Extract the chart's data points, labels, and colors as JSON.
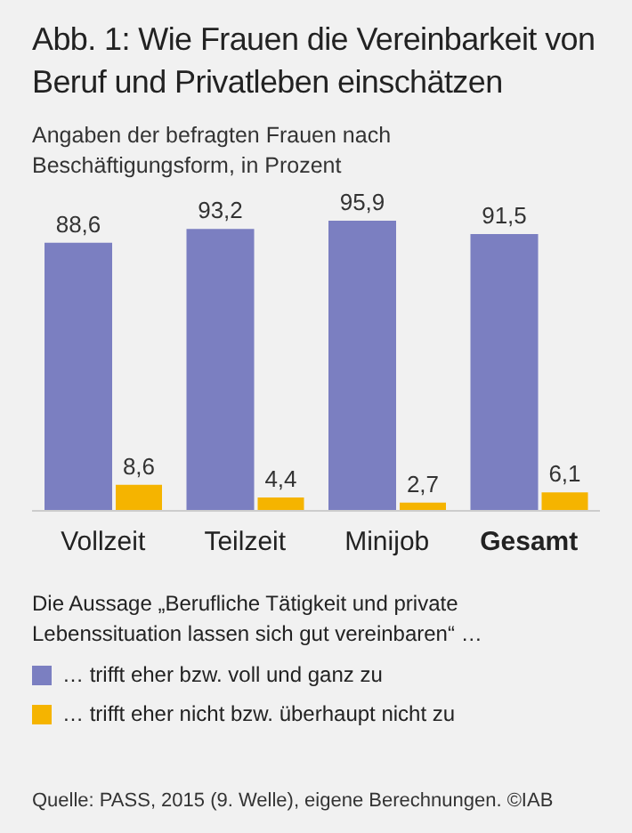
{
  "chart_data": {
    "type": "bar",
    "title": "Abb. 1: Wie Frauen die Vereinbarkeit von Beruf und Privatleben einschätzen",
    "subtitle": "Angaben der befragten Frauen nach Beschäftigungsform, in Prozent",
    "categories": [
      "Vollzeit",
      "Teilzeit",
      "Minijob",
      "Gesamt"
    ],
    "series": [
      {
        "name": "… trifft eher bzw. voll und ganz zu",
        "color": "#7b7fc1",
        "values": [
          88.6,
          93.2,
          95.9,
          91.5
        ],
        "value_labels": [
          "88,6",
          "93,2",
          "95,9",
          "91,5"
        ]
      },
      {
        "name": "… trifft eher nicht bzw. überhaupt nicht zu",
        "color": "#f5b400",
        "values": [
          8.6,
          4.4,
          2.7,
          6.1
        ],
        "value_labels": [
          "8,6",
          "4,4",
          "2,7",
          "6,1"
        ]
      }
    ],
    "legend": "bottom",
    "grid": false,
    "legend_title": "Die Aussage „Berufliche Tätigkeit und private Lebenssituation lassen sich gut vereinbaren“ …",
    "annotations": [
      "Quelle: PASS, 2015 (9. Welle), eigene Berechnungen. ©IAB"
    ]
  }
}
